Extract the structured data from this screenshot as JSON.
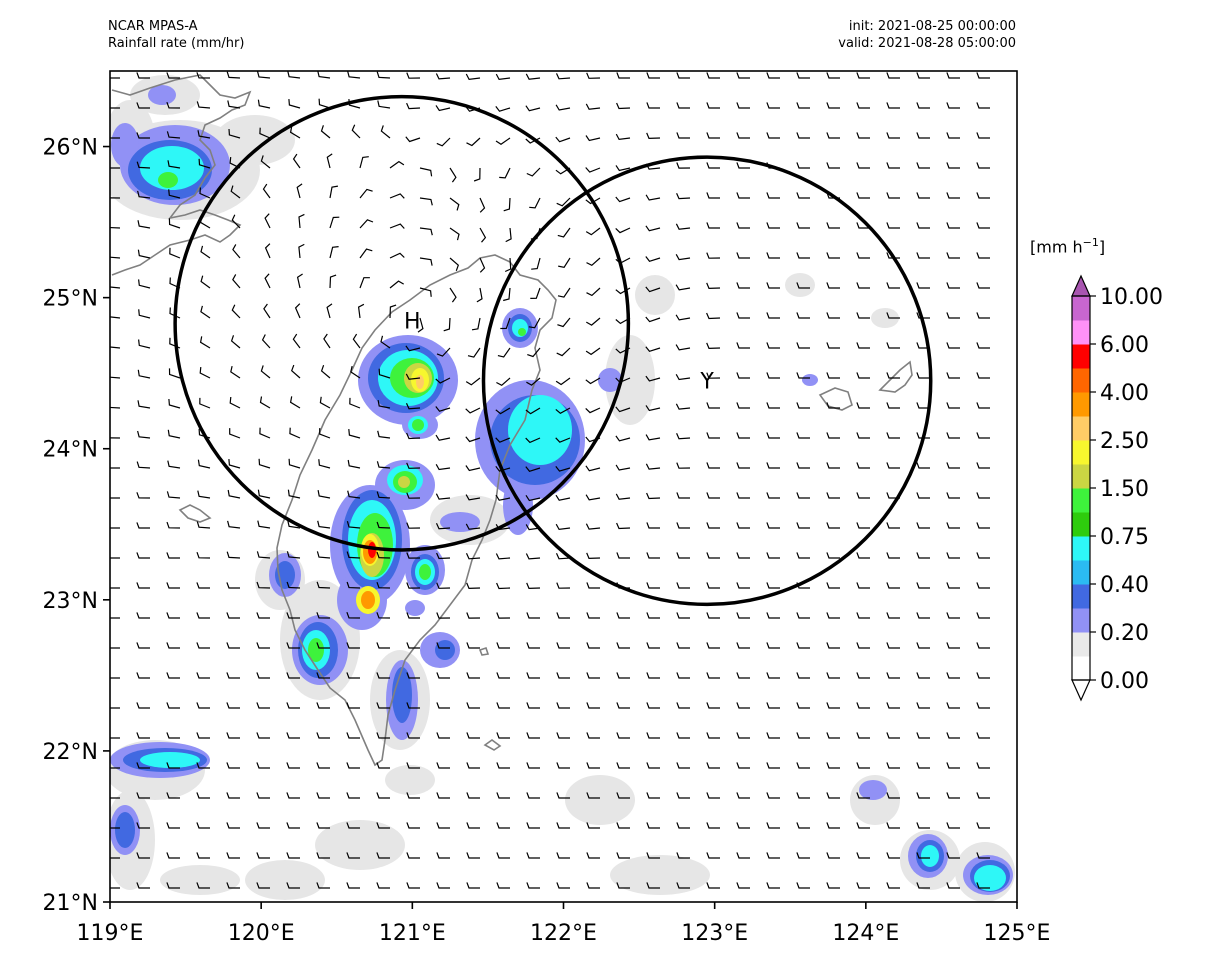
{
  "header": {
    "model": "NCAR MPAS-A",
    "field": "Rainfall rate (mm/hr)",
    "init": "init: 2021-08-25 00:00:00",
    "valid": "valid: 2021-08-28 05:00:00"
  },
  "map": {
    "lon_range": [
      119,
      125
    ],
    "lat_range": [
      21,
      26.5
    ],
    "x_ticks": [
      "119°E",
      "120°E",
      "121°E",
      "122°E",
      "123°E",
      "124°E",
      "125°E"
    ],
    "y_ticks": [
      "21°N",
      "22°N",
      "23°N",
      "24°N",
      "25°N",
      "26°N"
    ],
    "markers": [
      {
        "label": "H",
        "lon": 121.0,
        "lat": 24.85
      },
      {
        "label": "Y",
        "lon": 122.95,
        "lat": 24.45
      }
    ],
    "circles": [
      {
        "center_lon": 120.93,
        "center_lat": 24.83,
        "radius_deg": 1.5
      },
      {
        "center_lon": 122.95,
        "center_lat": 24.45,
        "radius_deg": 1.48
      }
    ],
    "rain_features": [
      {
        "name": "north-taiwan-core",
        "lon": 121.05,
        "lat": 24.45,
        "peak": 2.5
      },
      {
        "name": "central-taiwan-core",
        "lon": 120.73,
        "lat": 23.33,
        "peak": 4.0
      },
      {
        "name": "yilan-band",
        "lon": 121.7,
        "lat": 24.1,
        "peak": 0.75
      },
      {
        "name": "fujian-coast",
        "lon": 119.4,
        "lat": 25.8,
        "peak": 1.0
      }
    ]
  },
  "colorbar": {
    "unit": "[mm h",
    "unit_sup": "−1",
    "unit_end": "]",
    "labels": [
      "10.00",
      "6.00",
      "4.00",
      "2.50",
      "1.50",
      "0.75",
      "0.40",
      "0.20",
      "0.00"
    ],
    "colors": [
      "#ffffff",
      "#e9e9e9",
      "#9191f5",
      "#4169e1",
      "#2bbbf2",
      "#2ef7f7",
      "#2ecc0d",
      "#3ef23c",
      "#cbd643",
      "#f7f72e",
      "#ffcc66",
      "#ff9900",
      "#ff6600",
      "#ff0000",
      "#ff91f7",
      "#c866d0"
    ],
    "extend_over_color": "#a855b0"
  }
}
